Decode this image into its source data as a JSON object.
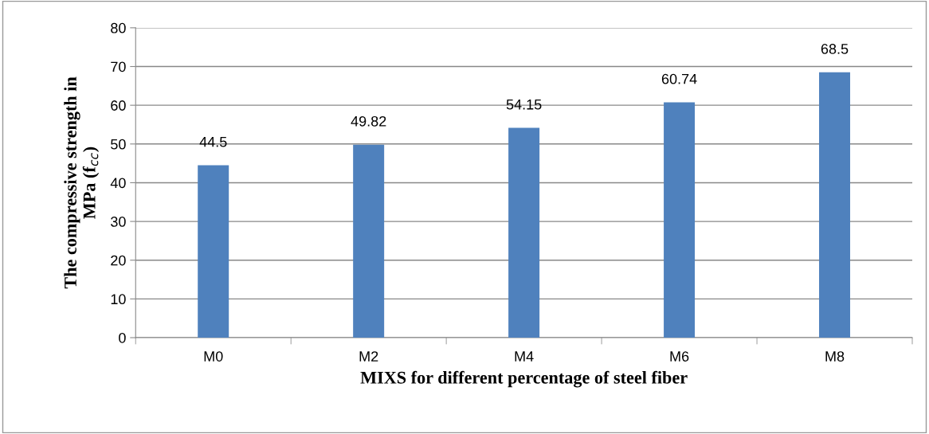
{
  "chart_data": {
    "type": "bar",
    "xlabel": "MIXS for different percentage of steel fiber",
    "ylabel": "The compressive strength in\nMPa (f$_{cc}$)",
    "categories": [
      "M0",
      "M2",
      "M4",
      "M6",
      "M8"
    ],
    "values": [
      44.5,
      49.82,
      54.15,
      60.74,
      68.5
    ],
    "color": "#4f81bd",
    "ylim": [
      0,
      80
    ],
    "yticks": [
      0,
      10,
      20,
      30,
      40,
      50,
      60,
      70,
      80
    ],
    "grid": "y",
    "data_labels": true
  }
}
